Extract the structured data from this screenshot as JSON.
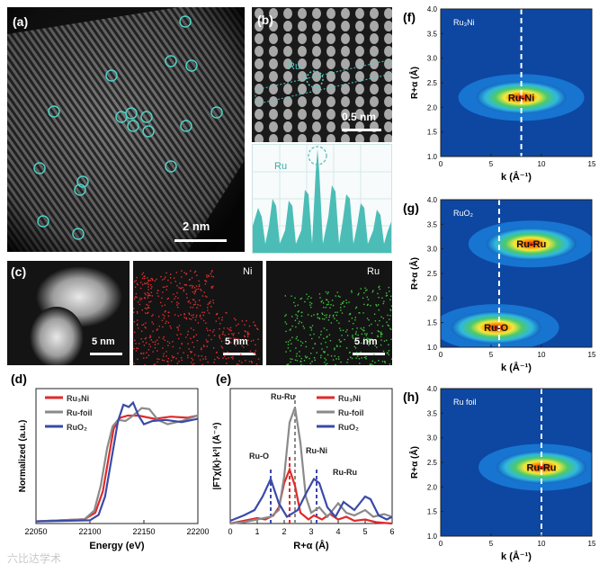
{
  "panels": {
    "a": {
      "label": "(a)",
      "scale": "2 nm"
    },
    "b": {
      "label": "(b)",
      "marker": "Ru",
      "scale": "0.5 nm",
      "profile_marker": "Ru"
    },
    "c": {
      "label": "(c)",
      "scale_left": "5 nm",
      "scale_mid": "5 nm",
      "scale_right": "5 nm",
      "map_ni": "Ni",
      "map_ru": "Ru"
    },
    "d": {
      "label": "(d)"
    },
    "e": {
      "label": "(e)"
    },
    "f": {
      "label": "(f)",
      "sample": "Ru₃Ni",
      "peak": "Ru-Ni"
    },
    "g": {
      "label": "(g)",
      "sample": "RuO₂",
      "peak1": "Ru-Ru",
      "peak2": "Ru-O"
    },
    "h": {
      "label": "(h)",
      "sample": "Ru foil",
      "peak": "Ru-Ru"
    }
  },
  "watermark": "六比达学术",
  "chart_data": [
    {
      "id": "d",
      "type": "line",
      "title": "",
      "xlabel": "Energy (eV)",
      "ylabel": "Normalized (a.u.)",
      "xlim": [
        22050,
        22200
      ],
      "ylim": [
        0,
        1.25
      ],
      "xticks": [
        22050,
        22100,
        22150,
        22200
      ],
      "xtick_labels": [
        "22050",
        "22100",
        "22150",
        "22200"
      ],
      "legend": [
        "Ru₃Ni",
        "Ru-foil",
        "RuO₂"
      ],
      "series": [
        {
          "name": "Ru₃Ni",
          "color": "#e02a2a",
          "x": [
            22050,
            22095,
            22105,
            22112,
            22118,
            22122,
            22128,
            22135,
            22145,
            22160,
            22175,
            22190,
            22200
          ],
          "y": [
            0.02,
            0.04,
            0.1,
            0.3,
            0.65,
            0.88,
            0.98,
            1.0,
            1.0,
            0.97,
            0.99,
            0.98,
            1.0
          ]
        },
        {
          "name": "Ru-foil",
          "color": "#8a8a8a",
          "x": [
            22050,
            22095,
            22104,
            22110,
            22116,
            22121,
            22126,
            22133,
            22140,
            22148,
            22155,
            22163,
            22172,
            22185,
            22200
          ],
          "y": [
            0.02,
            0.04,
            0.12,
            0.35,
            0.7,
            0.9,
            0.96,
            0.95,
            1.0,
            1.07,
            1.06,
            0.96,
            0.92,
            0.95,
            1.0
          ]
        },
        {
          "name": "RuO₂",
          "color": "#3a4aa8",
          "x": [
            22050,
            22100,
            22108,
            22114,
            22120,
            22126,
            22131,
            22136,
            22140,
            22145,
            22150,
            22158,
            22170,
            22185,
            22200
          ],
          "y": [
            0.02,
            0.03,
            0.08,
            0.25,
            0.6,
            0.95,
            1.1,
            1.08,
            1.12,
            1.0,
            0.92,
            0.95,
            0.96,
            0.94,
            0.97
          ]
        }
      ]
    },
    {
      "id": "e",
      "type": "line",
      "title": "",
      "xlabel": "R+α (Å)",
      "ylabel": "|FTχ(k)·k³| (Å⁻⁴)",
      "xlim": [
        0,
        6
      ],
      "ylim": [
        0,
        1.0
      ],
      "xticks": [
        0,
        1,
        2,
        3,
        4,
        5,
        6
      ],
      "xtick_labels": [
        "0",
        "1",
        "2",
        "3",
        "4",
        "5",
        "6"
      ],
      "legend": [
        "Ru₃Ni",
        "Ru-foil",
        "RuO₂"
      ],
      "annotations": [
        "Ru-Ru",
        "Ru-O",
        "Ru-Ni",
        "Ru-Ru"
      ],
      "series": [
        {
          "name": "Ru₃Ni",
          "color": "#e02a2a",
          "x": [
            0,
            0.5,
            1.0,
            1.3,
            1.6,
            1.8,
            2.0,
            2.2,
            2.4,
            2.6,
            2.9,
            3.1,
            3.4,
            3.7,
            4.0,
            4.3,
            4.6,
            5.0,
            5.4,
            6.0
          ],
          "y": [
            0.0,
            0.02,
            0.04,
            0.03,
            0.06,
            0.12,
            0.3,
            0.4,
            0.28,
            0.08,
            0.03,
            0.06,
            0.03,
            0.07,
            0.03,
            0.05,
            0.02,
            0.03,
            0.01,
            0.0
          ]
        },
        {
          "name": "Ru-foil",
          "color": "#8a8a8a",
          "x": [
            0,
            0.5,
            1.0,
            1.5,
            1.8,
            2.0,
            2.2,
            2.4,
            2.6,
            2.8,
            3.0,
            3.3,
            3.6,
            4.0,
            4.3,
            4.6,
            5.0,
            5.3,
            5.7,
            6.0
          ],
          "y": [
            0.0,
            0.01,
            0.03,
            0.05,
            0.1,
            0.35,
            0.75,
            0.86,
            0.6,
            0.2,
            0.08,
            0.12,
            0.05,
            0.15,
            0.08,
            0.06,
            0.1,
            0.05,
            0.07,
            0.05
          ]
        },
        {
          "name": "RuO₂",
          "color": "#3a4aa8",
          "x": [
            0,
            0.5,
            0.9,
            1.2,
            1.5,
            1.8,
            2.1,
            2.5,
            2.8,
            3.1,
            3.3,
            3.6,
            3.9,
            4.2,
            4.6,
            5.0,
            5.2,
            5.5,
            5.8,
            6.0
          ],
          "y": [
            0.02,
            0.06,
            0.1,
            0.2,
            0.33,
            0.15,
            0.05,
            0.1,
            0.22,
            0.33,
            0.3,
            0.12,
            0.05,
            0.16,
            0.1,
            0.2,
            0.18,
            0.06,
            0.03,
            0.05
          ]
        }
      ]
    },
    {
      "id": "f",
      "type": "heatmap",
      "title": "Ru₃Ni",
      "xlabel": "k (Å⁻¹)",
      "ylabel": "R+α (Å)",
      "xlim": [
        0,
        15
      ],
      "ylim": [
        1.0,
        4.0
      ],
      "xticks": [
        0,
        5,
        10,
        15
      ],
      "yticks": [
        1.0,
        1.5,
        2.0,
        2.5,
        3.0,
        3.5,
        4.0
      ],
      "peaks": [
        {
          "label": "Ru-Ni",
          "k": 8.0,
          "r": 2.2
        }
      ],
      "dashed_k": 8.0
    },
    {
      "id": "g",
      "type": "heatmap",
      "title": "RuO₂",
      "xlabel": "k (Å⁻¹)",
      "ylabel": "R+α (Å)",
      "xlim": [
        0,
        15
      ],
      "ylim": [
        1.0,
        4.0
      ],
      "xticks": [
        0,
        5,
        10,
        15
      ],
      "yticks": [
        1.0,
        1.5,
        2.0,
        2.5,
        3.0,
        3.5,
        4.0
      ],
      "peaks": [
        {
          "label": "Ru-Ru",
          "k": 9.0,
          "r": 3.1
        },
        {
          "label": "Ru-O",
          "k": 5.5,
          "r": 1.4
        }
      ],
      "dashed_k": 5.8
    },
    {
      "id": "h",
      "type": "heatmap",
      "title": "Ru foil",
      "xlabel": "k (Å⁻¹)",
      "ylabel": "R+α (Å)",
      "xlim": [
        0,
        15
      ],
      "ylim": [
        1.0,
        4.0
      ],
      "xticks": [
        0,
        5,
        10,
        15
      ],
      "yticks": [
        1.0,
        1.5,
        2.0,
        2.5,
        3.0,
        3.5,
        4.0
      ],
      "peaks": [
        {
          "label": "Ru-Ru",
          "k": 10.0,
          "r": 2.4
        }
      ],
      "dashed_k": 10.0
    }
  ]
}
